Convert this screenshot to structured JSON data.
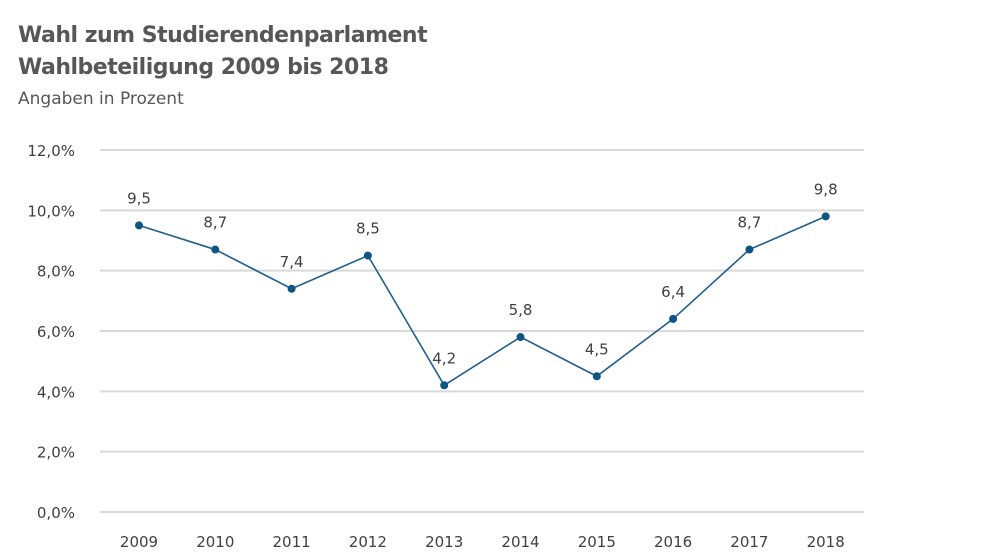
{
  "header": {
    "title_line1": "Wahl zum Studierendenparlament",
    "title_line2": "Wahlbeteiligung 2009 bis 2018",
    "subtitle": "Angaben in Prozent"
  },
  "colors": {
    "line": "#1f5f8b",
    "marker": "#0e5584",
    "grid": "#d9d9d9",
    "text": "#404040"
  },
  "chart_data": {
    "type": "line",
    "categories": [
      "2009",
      "2010",
      "2011",
      "2012",
      "2013",
      "2014",
      "2015",
      "2016",
      "2017",
      "2018"
    ],
    "series": [
      {
        "values": [
          9.5,
          8.7,
          7.4,
          8.5,
          4.2,
          5.8,
          4.5,
          6.4,
          8.7,
          9.8
        ],
        "labels": [
          "9,5",
          "8,7",
          "7,4",
          "8,5",
          "4,2",
          "5,8",
          "4,5",
          "6,4",
          "8,7",
          "9,8"
        ]
      }
    ],
    "ylim": [
      0,
      12
    ],
    "yticks": [
      0,
      2,
      4,
      6,
      8,
      10,
      12
    ],
    "ytick_labels": [
      "0,0%",
      "2,0%",
      "4,0%",
      "6,0%",
      "8,0%",
      "10,0%",
      "12,0%"
    ],
    "grid": true,
    "legend": "none",
    "xlabel": "",
    "ylabel": ""
  }
}
